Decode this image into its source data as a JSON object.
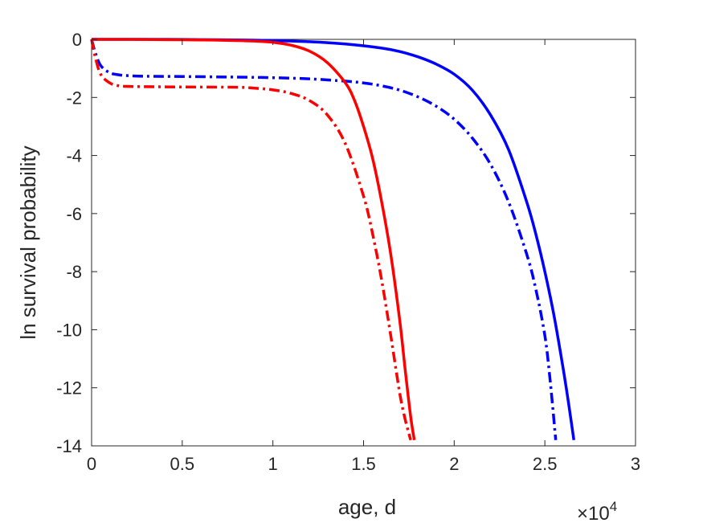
{
  "chart_data": {
    "type": "line",
    "title": "",
    "xlabel": "age, d",
    "ylabel": "ln survival probability",
    "x_multiplier": {
      "base": "10",
      "exponent": "4",
      "prefix": "×"
    },
    "xlim": [
      0,
      30000
    ],
    "ylim": [
      -14,
      0
    ],
    "x_ticks": [
      0,
      5000,
      10000,
      15000,
      20000,
      25000,
      30000
    ],
    "x_tick_labels": [
      "0",
      "0.5",
      "1",
      "1.5",
      "2",
      "2.5",
      "3"
    ],
    "y_ticks": [
      0,
      -2,
      -4,
      -6,
      -8,
      -10,
      -12,
      -14
    ],
    "y_tick_labels": [
      "0",
      "-2",
      "-4",
      "-6",
      "-8",
      "-10",
      "-12",
      "-14"
    ],
    "grid": false,
    "series": [
      {
        "color": "#0000ff",
        "dash": "solid",
        "x": [
          0,
          2000,
          4000,
          6000,
          8000,
          10000,
          12000,
          14000,
          16000,
          17000,
          18000,
          19000,
          20000,
          21000,
          22000,
          23000,
          24000,
          24500,
          25000,
          25500,
          26000,
          26300,
          26600
        ],
        "y": [
          0,
          0,
          0,
          -0.01,
          -0.02,
          -0.04,
          -0.08,
          -0.16,
          -0.3,
          -0.42,
          -0.6,
          -0.85,
          -1.2,
          -1.75,
          -2.6,
          -3.8,
          -5.6,
          -6.7,
          -8.0,
          -9.5,
          -11.3,
          -12.5,
          -13.8
        ]
      },
      {
        "color": "#0000ff",
        "dash": "dashdot",
        "x": [
          0,
          200,
          500,
          1000,
          1500,
          2000,
          3000,
          5000,
          8000,
          10000,
          12000,
          14000,
          15000,
          16000,
          17000,
          18000,
          19000,
          20000,
          21000,
          22000,
          23000,
          24000,
          24500,
          25000,
          25300,
          25600
        ],
        "y": [
          0,
          -0.45,
          -0.9,
          -1.15,
          -1.22,
          -1.25,
          -1.27,
          -1.28,
          -1.3,
          -1.32,
          -1.36,
          -1.44,
          -1.5,
          -1.6,
          -1.75,
          -1.98,
          -2.3,
          -2.75,
          -3.4,
          -4.3,
          -5.6,
          -7.4,
          -8.6,
          -10.2,
          -11.8,
          -13.8
        ]
      },
      {
        "color": "#ff0000",
        "dash": "solid",
        "x": [
          0,
          2000,
          4000,
          6000,
          8000,
          9000,
          10000,
          11000,
          12000,
          13000,
          14000,
          14500,
          15000,
          15500,
          16000,
          16500,
          17000,
          17300,
          17600,
          17800
        ],
        "y": [
          0,
          0,
          -0.01,
          -0.02,
          -0.04,
          -0.06,
          -0.1,
          -0.2,
          -0.4,
          -0.8,
          -1.5,
          -2.1,
          -3.0,
          -4.1,
          -5.6,
          -7.4,
          -9.7,
          -11.4,
          -13.0,
          -13.8
        ]
      },
      {
        "color": "#ff0000",
        "dash": "dashdot",
        "x": [
          0,
          200,
          500,
          1000,
          1500,
          2000,
          3000,
          5000,
          8000,
          9000,
          10000,
          11000,
          12000,
          13000,
          14000,
          15000,
          15500,
          16000,
          16500,
          17000,
          17300,
          17600
        ],
        "y": [
          0,
          -0.6,
          -1.2,
          -1.5,
          -1.6,
          -1.62,
          -1.63,
          -1.64,
          -1.65,
          -1.68,
          -1.74,
          -1.86,
          -2.1,
          -2.6,
          -3.6,
          -5.4,
          -6.7,
          -8.3,
          -10.2,
          -12.2,
          -13.1,
          -13.8
        ]
      }
    ]
  }
}
